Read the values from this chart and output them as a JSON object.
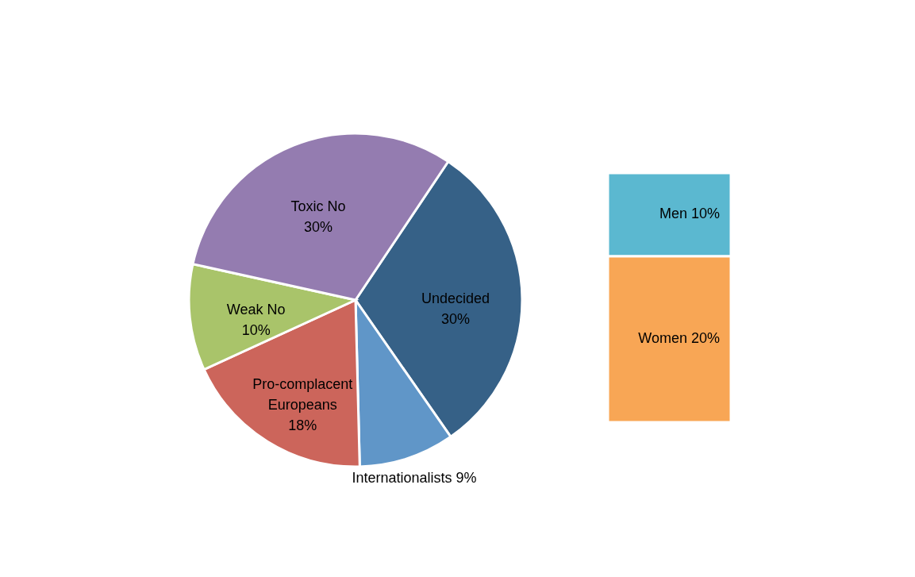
{
  "chart_data": [
    {
      "type": "pie",
      "categories": [
        "Undecided",
        "Internationalists",
        "Pro-complacent Europeans",
        "Weak No",
        "Toxic No"
      ],
      "values": [
        30,
        9,
        18,
        10,
        30
      ],
      "colors": [
        "#366187",
        "#6096c8",
        "#cc655b",
        "#a9c46a",
        "#947cb0"
      ],
      "value_labels": [
        "30%",
        "9%",
        "18%",
        "10%",
        "30%"
      ]
    },
    {
      "type": "bar",
      "stacked": true,
      "data_labels": true,
      "tick_labels": false,
      "categories": [
        null
      ],
      "series": [
        {
          "name": "Women",
          "color": "#f8a655",
          "values": [
            20
          ],
          "value_labels": [
            "20%"
          ]
        },
        {
          "name": "Men",
          "color": "#5bb8d0",
          "values": [
            10
          ],
          "value_labels": [
            "10%"
          ]
        }
      ]
    }
  ]
}
